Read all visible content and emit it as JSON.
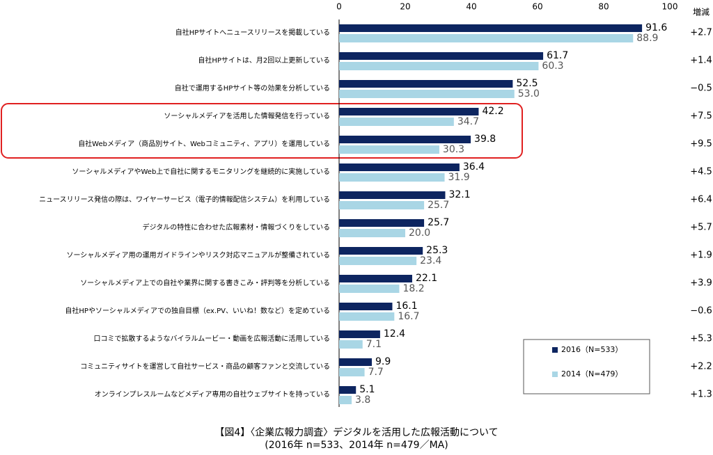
{
  "chart_data": {
    "type": "bar",
    "orientation": "horizontal",
    "categories": [
      "自社HPサイトへニュースリリースを掲載している",
      "自社HPサイトは、月2回以上更新している",
      "自社で運用するHPサイト等の効果を分析している",
      "ソーシャルメディアを活用した情報発信を行っている",
      "自社Webメディア（商品別サイト、Webコミュニティ、アプリ）を運用している",
      "ソーシャルメディアやWeb上で自社に関するモニタリングを継続的に実施している",
      "ニュースリリース発信の際は、ワイヤーサービス（電子的情報配信システム）を利用している",
      "デジタルの特性に合わせた広報素材・情報づくりをしている",
      "ソーシャルメディア用の運用ガイドラインやリスク対応マニュアルが整備されている",
      "ソーシャルメディア上での自社や業界に関する書きこみ・評判等を分析している",
      "自社HPやソーシャルメディアでの独自目標（ex.PV、いいね！数など）を定めている",
      "口コミで拡散するようなバイラルムービー・動画を広報活動に活用している",
      "コミュニティサイトを運営して自社サービス・商品の顧客ファンと交流している",
      "オンラインプレスルームなどメディア専用の自社ウェブサイトを持っている"
    ],
    "series": [
      {
        "name": "2016（N=533）",
        "color": "#0d2560",
        "label_color": "#000000",
        "values": [
          91.6,
          61.7,
          52.5,
          42.2,
          39.8,
          36.4,
          32.1,
          25.7,
          25.3,
          22.1,
          16.1,
          12.4,
          9.9,
          5.1
        ],
        "value_labels": [
          "91.6",
          "61.7",
          "52.5",
          "42.2",
          "39.8",
          "36.4",
          "32.1",
          "25.7",
          "25.3",
          "22.1",
          "16.1",
          "12.4",
          "9.9",
          "5.1"
        ]
      },
      {
        "name": "2014（N=479）",
        "color": "#a9d6e5",
        "label_color": "#555555",
        "values": [
          88.9,
          60.3,
          53.0,
          34.7,
          30.3,
          31.9,
          25.7,
          20.0,
          23.4,
          18.2,
          16.7,
          7.1,
          7.7,
          3.8
        ],
        "value_labels": [
          "88.9",
          "60.3",
          "53.0",
          "34.7",
          "30.3",
          "31.9",
          "25.7",
          "20.0",
          "23.4",
          "18.2",
          "16.7",
          "7.1",
          "7.7",
          "3.8"
        ]
      }
    ],
    "change_header": "増減",
    "change": [
      "+2.7",
      "+1.4",
      "−0.5",
      "+7.5",
      "+9.5",
      "+4.5",
      "+6.4",
      "+5.7",
      "+1.9",
      "+3.9",
      "−0.6",
      "+5.3",
      "+2.2",
      "+1.3"
    ],
    "xlim": [
      0,
      100
    ],
    "xticks": [
      0,
      20,
      40,
      60,
      80,
      100
    ],
    "caption": [
      "【図4】〈企業広報力調査〉デジタルを活用した広報活動について",
      "(2016年 n=533、2014年 n=479／MA)"
    ]
  }
}
